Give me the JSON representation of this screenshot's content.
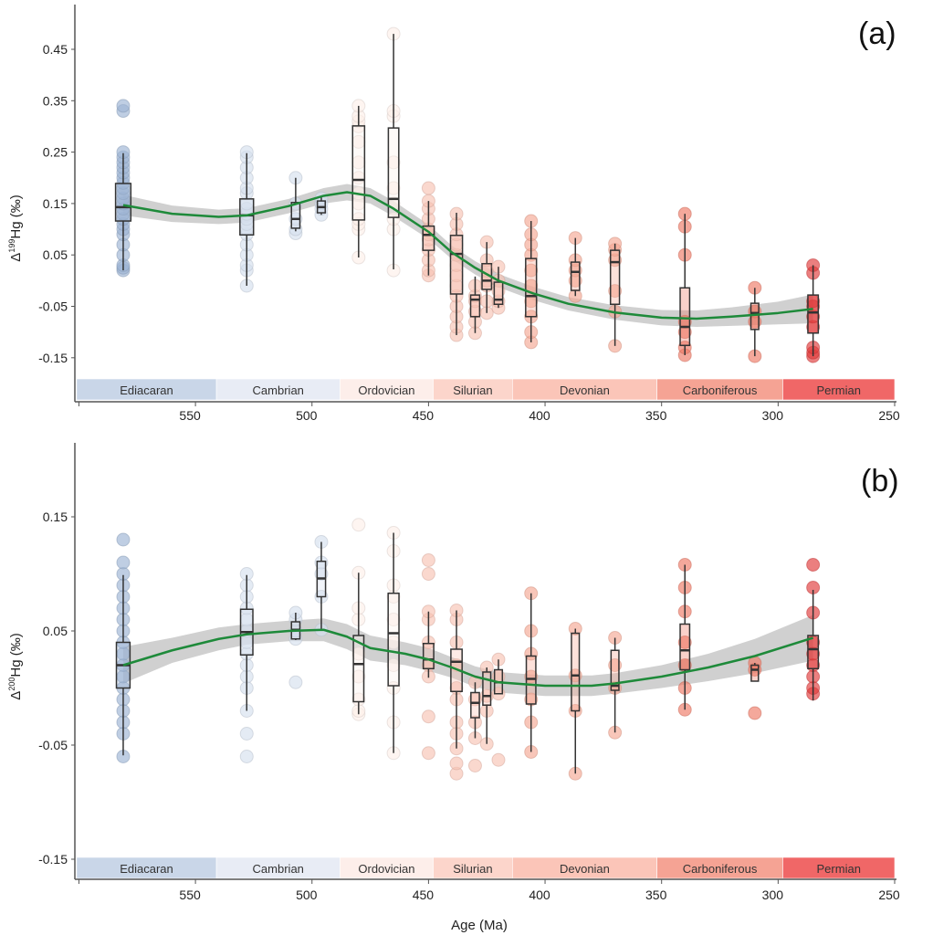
{
  "chart_data": [
    {
      "type": "box+scatter+line",
      "panel_label": "(a)",
      "ylabel_prefix": "Δ",
      "ylabel_sup": "199",
      "ylabel_suffix": "Hg (‰)",
      "xlabel": "",
      "xlim": [
        600,
        250
      ],
      "ylim": [
        -0.235,
        0.537
      ],
      "yticks": [
        "0.45",
        "0.35",
        "0.25",
        "0.15",
        "0.05",
        "-0.05",
        "-0.15"
      ],
      "ytick_values": [
        0.45,
        0.35,
        0.25,
        0.15,
        0.05,
        -0.05,
        -0.15
      ],
      "xticks": [
        "550",
        "500",
        "450",
        "400",
        "350",
        "300",
        "250"
      ],
      "xtick_values": [
        550,
        500,
        450,
        400,
        350,
        300,
        250
      ],
      "groups": [
        {
          "age": 581,
          "period": "Ediacaran",
          "whisker": [
            0.02,
            0.248
          ],
          "q1": 0.116,
          "median": 0.143,
          "q3": 0.189,
          "points": [
            0.02,
            0.025,
            0.03,
            0.05,
            0.07,
            0.09,
            0.1,
            0.11,
            0.12,
            0.13,
            0.14,
            0.15,
            0.16,
            0.17,
            0.18,
            0.19,
            0.2,
            0.21,
            0.22,
            0.23,
            0.24,
            0.25,
            0.33,
            0.34
          ]
        },
        {
          "age": 528,
          "period": "Cambrian",
          "whisker": [
            -0.01,
            0.248
          ],
          "q1": 0.089,
          "median": 0.127,
          "q3": 0.159,
          "points": [
            -0.01,
            0.02,
            0.03,
            0.05,
            0.07,
            0.09,
            0.1,
            0.11,
            0.12,
            0.13,
            0.14,
            0.15,
            0.17,
            0.18,
            0.2,
            0.22,
            0.24,
            0.25
          ]
        },
        {
          "age": 507,
          "period": "Cambrian",
          "whisker": [
            0.096,
            0.2
          ],
          "q1": 0.102,
          "median": 0.12,
          "q3": 0.152,
          "points": [
            0.092,
            0.1,
            0.12,
            0.15,
            0.2
          ]
        },
        {
          "age": 496,
          "period": "Cambrian",
          "whisker": [
            0.128,
            0.164
          ],
          "q1": 0.132,
          "median": 0.143,
          "q3": 0.155,
          "points": [
            0.128,
            0.14,
            0.15,
            0.16
          ]
        },
        {
          "age": 480,
          "period": "Ordovician",
          "whisker": [
            0.045,
            0.34
          ],
          "q1": 0.118,
          "median": 0.196,
          "q3": 0.301,
          "points": [
            0.045,
            0.1,
            0.11,
            0.12,
            0.15,
            0.17,
            0.2,
            0.23,
            0.27,
            0.3,
            0.31,
            0.32,
            0.34
          ]
        },
        {
          "age": 465,
          "period": "Ordovician",
          "whisker": [
            0.022,
            0.48
          ],
          "q1": 0.123,
          "median": 0.159,
          "q3": 0.297,
          "points": [
            0.02,
            0.1,
            0.12,
            0.15,
            0.18,
            0.23,
            0.32,
            0.33,
            0.48
          ]
        },
        {
          "age": 450,
          "period": "Silurian",
          "whisker": [
            0.01,
            0.155
          ],
          "q1": 0.059,
          "median": 0.089,
          "q3": 0.106,
          "points": [
            0.01,
            0.02,
            0.04,
            0.06,
            0.08,
            0.09,
            0.1,
            0.12,
            0.14,
            0.155,
            0.18
          ]
        },
        {
          "age": 438,
          "period": "Silurian",
          "whisker": [
            -0.106,
            0.132
          ],
          "q1": -0.026,
          "median": 0.052,
          "q3": 0.088,
          "points": [
            -0.106,
            -0.09,
            -0.07,
            -0.05,
            -0.03,
            -0.01,
            0.01,
            0.03,
            0.05,
            0.07,
            0.09,
            0.11,
            0.13
          ]
        },
        {
          "age": 430,
          "period": "Silurian",
          "whisker": [
            -0.102,
            0.008
          ],
          "q1": -0.07,
          "median": -0.037,
          "q3": -0.028,
          "points": [
            -0.102,
            -0.08,
            -0.06,
            -0.04,
            -0.03,
            -0.01
          ]
        },
        {
          "age": 425,
          "period": "Silurian",
          "whisker": [
            -0.063,
            0.075
          ],
          "q1": -0.017,
          "median": 0.0,
          "q3": 0.033,
          "points": [
            -0.063,
            -0.04,
            -0.01,
            0.0,
            0.02,
            0.04,
            0.075
          ]
        },
        {
          "age": 420,
          "period": "Silurian",
          "whisker": [
            -0.053,
            0.027
          ],
          "q1": -0.046,
          "median": -0.037,
          "q3": -0.003,
          "points": [
            -0.053,
            -0.04,
            -0.02,
            0.0,
            0.027
          ]
        },
        {
          "age": 406,
          "period": "Devonian",
          "whisker": [
            -0.12,
            0.116
          ],
          "q1": -0.07,
          "median": -0.03,
          "q3": 0.043,
          "points": [
            -0.12,
            -0.1,
            -0.07,
            -0.04,
            -0.01,
            0.02,
            0.05,
            0.07,
            0.09,
            0.116
          ]
        },
        {
          "age": 387,
          "period": "Devonian",
          "whisker": [
            -0.03,
            0.083
          ],
          "q1": -0.019,
          "median": 0.017,
          "q3": 0.036,
          "points": [
            -0.03,
            0.0,
            0.02,
            0.04,
            0.083
          ]
        },
        {
          "age": 370,
          "period": "Devonian",
          "whisker": [
            -0.127,
            0.072
          ],
          "q1": -0.046,
          "median": 0.036,
          "q3": 0.059,
          "points": [
            -0.127,
            -0.06,
            -0.02,
            0.04,
            0.06,
            0.072
          ]
        },
        {
          "age": 340,
          "period": "Carboniferous",
          "whisker": [
            -0.145,
            0.13
          ],
          "q1": -0.126,
          "median": -0.09,
          "q3": -0.014,
          "points": [
            -0.145,
            -0.13,
            -0.1,
            -0.08,
            0.05,
            0.105,
            0.13
          ]
        },
        {
          "age": 310,
          "period": "Carboniferous",
          "whisker": [
            -0.147,
            -0.014
          ],
          "q1": -0.095,
          "median": -0.063,
          "q3": -0.044,
          "points": [
            -0.147,
            -0.08,
            -0.06,
            -0.014
          ]
        },
        {
          "age": 285,
          "period": "Permian",
          "whisker": [
            -0.147,
            0.03
          ],
          "q1": -0.102,
          "median": -0.062,
          "q3": -0.028,
          "points": [
            -0.147,
            -0.14,
            -0.13,
            -0.09,
            -0.07,
            -0.05,
            -0.04,
            0.015,
            0.03
          ]
        }
      ],
      "smooth": {
        "ages": [
          581,
          560,
          540,
          528,
          510,
          495,
          485,
          475,
          465,
          450,
          440,
          430,
          420,
          405,
          390,
          370,
          350,
          335,
          320,
          300,
          285
        ],
        "values": [
          0.147,
          0.13,
          0.124,
          0.127,
          0.145,
          0.165,
          0.172,
          0.165,
          0.14,
          0.095,
          0.055,
          0.025,
          0.0,
          -0.025,
          -0.045,
          -0.062,
          -0.072,
          -0.074,
          -0.07,
          -0.063,
          -0.055
        ],
        "ci_halfwidth": [
          0.02,
          0.016,
          0.014,
          0.014,
          0.014,
          0.015,
          0.016,
          0.015,
          0.015,
          0.014,
          0.013,
          0.013,
          0.013,
          0.013,
          0.013,
          0.014,
          0.015,
          0.016,
          0.018,
          0.022,
          0.028
        ]
      }
    },
    {
      "type": "box+scatter+line",
      "panel_label": "(b)",
      "ylabel_prefix": "Δ",
      "ylabel_sup": "200",
      "ylabel_suffix": "Hg (‰)",
      "xlabel": "Age (Ma)",
      "xlim": [
        600,
        250
      ],
      "ylim": [
        -0.168,
        0.215
      ],
      "yticks": [
        "0.15",
        "0.05",
        "-0.05",
        "-0.15"
      ],
      "ytick_values": [
        0.15,
        0.05,
        -0.05,
        -0.15
      ],
      "xticks": [
        "550",
        "500",
        "450",
        "400",
        "350",
        "300",
        "250"
      ],
      "xtick_values": [
        550,
        500,
        450,
        400,
        350,
        300,
        250
      ],
      "groups": [
        {
          "age": 581,
          "period": "Ediacaran",
          "whisker": [
            -0.059,
            0.099
          ],
          "q1": 0.0,
          "median": 0.02,
          "q3": 0.04,
          "points": [
            -0.06,
            -0.04,
            -0.03,
            -0.02,
            -0.01,
            0.0,
            0.01,
            0.02,
            0.03,
            0.04,
            0.05,
            0.06,
            0.07,
            0.08,
            0.09,
            0.1,
            0.11,
            0.13
          ]
        },
        {
          "age": 528,
          "period": "Cambrian",
          "whisker": [
            -0.02,
            0.099
          ],
          "q1": 0.029,
          "median": 0.049,
          "q3": 0.069,
          "points": [
            -0.06,
            -0.04,
            -0.02,
            0.0,
            0.01,
            0.02,
            0.03,
            0.04,
            0.05,
            0.06,
            0.07,
            0.08,
            0.09,
            0.1
          ]
        },
        {
          "age": 507,
          "period": "Cambrian",
          "whisker": [
            0.042,
            0.066
          ],
          "q1": 0.043,
          "median": 0.051,
          "q3": 0.058,
          "points": [
            0.005,
            0.043,
            0.05,
            0.06,
            0.066
          ]
        },
        {
          "age": 496,
          "period": "Cambrian",
          "whisker": [
            0.051,
            0.128
          ],
          "q1": 0.08,
          "median": 0.096,
          "q3": 0.111,
          "points": [
            0.051,
            0.08,
            0.1,
            0.11,
            0.128
          ]
        },
        {
          "age": 480,
          "period": "Ordovician",
          "whisker": [
            -0.023,
            0.101
          ],
          "q1": -0.012,
          "median": 0.021,
          "q3": 0.046,
          "points": [
            -0.023,
            -0.02,
            -0.01,
            0.01,
            0.03,
            0.06,
            0.07,
            0.101,
            0.143
          ]
        },
        {
          "age": 465,
          "period": "Ordovician",
          "whisker": [
            -0.057,
            0.136
          ],
          "q1": 0.002,
          "median": 0.048,
          "q3": 0.083,
          "points": [
            -0.057,
            -0.03,
            0.0,
            0.02,
            0.04,
            0.06,
            0.08,
            0.09,
            0.12,
            0.136
          ]
        },
        {
          "age": 450,
          "period": "Silurian",
          "whisker": [
            0.009,
            0.067
          ],
          "q1": 0.017,
          "median": 0.025,
          "q3": 0.039,
          "points": [
            -0.057,
            -0.025,
            0.01,
            0.02,
            0.04,
            0.06,
            0.067,
            0.1,
            0.112
          ]
        },
        {
          "age": 438,
          "period": "Silurian",
          "whisker": [
            -0.053,
            0.068
          ],
          "q1": -0.003,
          "median": 0.023,
          "q3": 0.034,
          "points": [
            -0.075,
            -0.066,
            -0.053,
            -0.04,
            -0.03,
            -0.01,
            0.0,
            0.02,
            0.04,
            0.06,
            0.068
          ]
        },
        {
          "age": 430,
          "period": "Silurian",
          "whisker": [
            -0.044,
            0.005
          ],
          "q1": -0.026,
          "median": -0.013,
          "q3": -0.004,
          "points": [
            -0.068,
            -0.044,
            -0.03,
            -0.01,
            0.005
          ]
        },
        {
          "age": 425,
          "period": "Silurian",
          "whisker": [
            -0.049,
            0.018
          ],
          "q1": -0.015,
          "median": -0.007,
          "q3": 0.014,
          "points": [
            -0.049,
            -0.02,
            -0.007,
            0.018
          ]
        },
        {
          "age": 420,
          "period": "Silurian",
          "whisker": [
            -0.005,
            0.025
          ],
          "q1": -0.005,
          "median": 0.005,
          "q3": 0.016,
          "points": [
            -0.063,
            -0.005,
            0.01,
            0.025
          ]
        },
        {
          "age": 406,
          "period": "Devonian",
          "whisker": [
            -0.056,
            0.083
          ],
          "q1": -0.014,
          "median": 0.008,
          "q3": 0.028,
          "points": [
            -0.056,
            -0.03,
            -0.01,
            0.01,
            0.03,
            0.05,
            0.083
          ]
        },
        {
          "age": 387,
          "period": "Devonian",
          "whisker": [
            -0.075,
            0.052
          ],
          "q1": -0.02,
          "median": 0.011,
          "q3": 0.048,
          "points": [
            -0.075,
            -0.02,
            0.011,
            0.052
          ]
        },
        {
          "age": 370,
          "period": "Devonian",
          "whisker": [
            -0.039,
            0.044
          ],
          "q1": -0.002,
          "median": 0.002,
          "q3": 0.033,
          "points": [
            -0.039,
            0.0,
            0.02,
            0.044
          ]
        },
        {
          "age": 340,
          "period": "Carboniferous",
          "whisker": [
            -0.019,
            0.108
          ],
          "q1": 0.016,
          "median": 0.033,
          "q3": 0.056,
          "points": [
            -0.019,
            0.0,
            0.02,
            0.04,
            0.067,
            0.088,
            0.108
          ]
        },
        {
          "age": 310,
          "period": "Carboniferous",
          "whisker": [
            0.006,
            0.022
          ],
          "q1": 0.006,
          "median": 0.016,
          "q3": 0.02,
          "points": [
            -0.022,
            0.016,
            0.022
          ]
        },
        {
          "age": 285,
          "period": "Permian",
          "whisker": [
            -0.011,
            0.086
          ],
          "q1": 0.017,
          "median": 0.034,
          "q3": 0.046,
          "points": [
            -0.005,
            0.0,
            0.01,
            0.02,
            0.03,
            0.04,
            0.066,
            0.088,
            0.108
          ]
        }
      ],
      "smooth": {
        "ages": [
          581,
          560,
          540,
          528,
          510,
          495,
          485,
          475,
          460,
          450,
          440,
          430,
          420,
          400,
          380,
          370,
          350,
          330,
          310,
          285
        ],
        "values": [
          0.02,
          0.033,
          0.043,
          0.047,
          0.05,
          0.051,
          0.045,
          0.035,
          0.03,
          0.025,
          0.018,
          0.01,
          0.005,
          0.002,
          0.002,
          0.004,
          0.01,
          0.018,
          0.028,
          0.044
        ],
        "ci_halfwidth": [
          0.016,
          0.011,
          0.01,
          0.009,
          0.009,
          0.01,
          0.011,
          0.011,
          0.01,
          0.01,
          0.009,
          0.009,
          0.009,
          0.009,
          0.009,
          0.009,
          0.01,
          0.012,
          0.015,
          0.02
        ]
      }
    }
  ],
  "periods": [
    {
      "name": "Ediacaran",
      "start": 601,
      "end": 541,
      "color": "#c9d6e8"
    },
    {
      "name": "Cambrian",
      "start": 541,
      "end": 488,
      "color": "#e8ecf5"
    },
    {
      "name": "Ordovician",
      "start": 488,
      "end": 448,
      "color": "#fdeeea"
    },
    {
      "name": "Silurian",
      "start": 448,
      "end": 414,
      "color": "#fcd5cb"
    },
    {
      "name": "Devonian",
      "start": 414,
      "end": 352,
      "color": "#fbc5b8"
    },
    {
      "name": "Carboniferous",
      "start": 352,
      "end": 298,
      "color": "#f5a394"
    },
    {
      "name": "Permian",
      "start": 298,
      "end": 250,
      "color": "#f06767"
    }
  ],
  "point_colors": {
    "Ediacaran": "#9db4d4",
    "Cambrian": "#d6e0ee",
    "Ordovician": "#fdf0ea",
    "Silurian": "#f8c3b4",
    "Devonian": "#f5a894",
    "Carboniferous": "#ee7a66",
    "Permian": "#e03a3a"
  },
  "smooth_color": "#1e8a3a",
  "ci_color": "#c8c8c8"
}
